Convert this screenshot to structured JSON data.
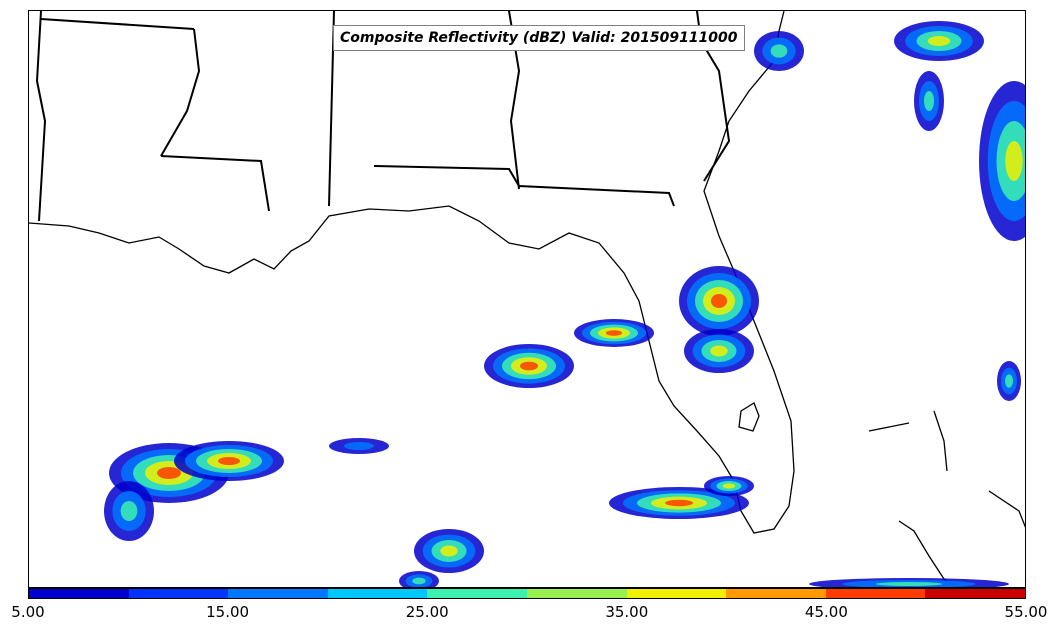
{
  "title": "Composite Reflectivity (dBZ) Valid: 201509111000",
  "colorbar": {
    "unit": "dBZ",
    "tick_labels": [
      "5.00",
      "15.00",
      "25.00",
      "35.00",
      "45.00",
      "55.00"
    ],
    "colors": [
      "#0000cc",
      "#0033ff",
      "#0077ff",
      "#00c8ff",
      "#3cf0b0",
      "#98f050",
      "#f0f000",
      "#ff9a00",
      "#ff3c00",
      "#c80000"
    ]
  },
  "map": {
    "region": "US Gulf Coast and Florida",
    "features": [
      "state-borders",
      "coastlines",
      "radar-reflectivity-echoes"
    ],
    "colors": {
      "border": "#000000",
      "background": "#ffffff"
    }
  }
}
